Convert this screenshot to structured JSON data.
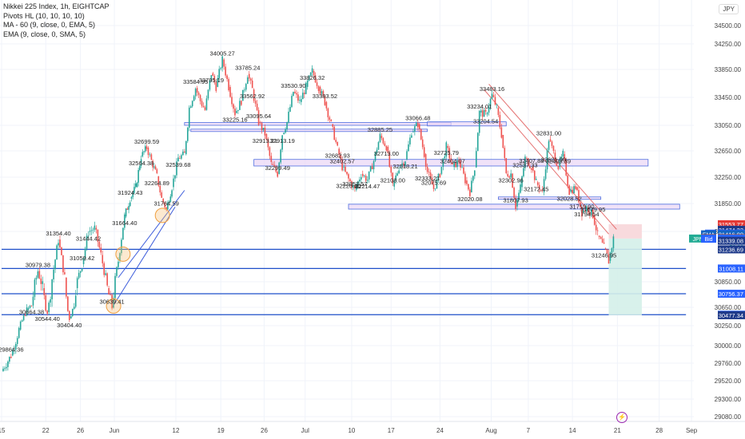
{
  "legend": {
    "title": "Nikkei 225 Index, 1h, EIGHTCAP",
    "indicators": [
      "Pivots HL (10, 10, 10, 10)",
      "MA - 60 (9, close, 0, EMA, 5)",
      "EMA (9, close, 0, SMA, 5)"
    ]
  },
  "currency": "JPY",
  "event_icon": "lightning-icon",
  "chart_data": {
    "type": "candlestick",
    "title": "Nikkei 225 Index, 1h, EIGHTCAP",
    "ylim": [
      28900,
      34700
    ],
    "y_ticks": [
      34500,
      34250,
      33850,
      33450,
      33050,
      32650,
      32250,
      31850,
      31450,
      30850,
      30650,
      30250,
      30000,
      29760,
      29520,
      29300,
      29080
    ],
    "y_tick_labels": [
      "34500.00",
      "34250.00",
      "33850.00",
      "33450.00",
      "33050.00",
      "32650.00",
      "32250.00",
      "31850.00",
      "31450.00",
      "30850.00",
      "30650.00",
      "30250.00",
      "30000.00",
      "29760.00",
      "29520.00",
      "29300.00",
      "29080.00"
    ],
    "x_ticks": [
      {
        "label": "15",
        "t": 0
      },
      {
        "label": "22",
        "t": 56
      },
      {
        "label": "26",
        "t": 100
      },
      {
        "label": "Jun",
        "t": 143
      },
      {
        "label": "12",
        "t": 221
      },
      {
        "label": "19",
        "t": 278
      },
      {
        "label": "26",
        "t": 333
      },
      {
        "label": "Jul",
        "t": 385
      },
      {
        "label": "10",
        "t": 444
      },
      {
        "label": "17",
        "t": 494
      },
      {
        "label": "24",
        "t": 556
      },
      {
        "label": "Aug",
        "t": 621
      },
      {
        "label": "7",
        "t": 668
      },
      {
        "label": "14",
        "t": 724
      },
      {
        "label": "21",
        "t": 781
      },
      {
        "label": "28",
        "t": 834
      },
      {
        "label": "Sep",
        "t": 875
      }
    ],
    "price_path": [
      [
        0,
        29650
      ],
      [
        12,
        29864.36
      ],
      [
        22,
        30200
      ],
      [
        32,
        30600
      ],
      [
        38,
        30664.38
      ],
      [
        46,
        30979.38
      ],
      [
        52,
        30800
      ],
      [
        58,
        30544.4
      ],
      [
        66,
        31000
      ],
      [
        72,
        31354.4
      ],
      [
        80,
        30900
      ],
      [
        86,
        30404.4
      ],
      [
        94,
        30800
      ],
      [
        102,
        31059.42
      ],
      [
        110,
        31444.42
      ],
      [
        118,
        31500
      ],
      [
        126,
        31169
      ],
      [
        134,
        30800
      ],
      [
        140,
        30639.41
      ],
      [
        148,
        31100
      ],
      [
        156,
        31664.4
      ],
      [
        163,
        31924.43
      ],
      [
        170,
        32100
      ],
      [
        177,
        32564.38
      ],
      [
        184,
        32699.59
      ],
      [
        190,
        32500
      ],
      [
        197,
        32264.89
      ],
      [
        203,
        31924
      ],
      [
        209,
        31764.59
      ],
      [
        216,
        32100
      ],
      [
        224,
        32539.68
      ],
      [
        232,
        32600
      ],
      [
        238,
        33300
      ],
      [
        246,
        33584.95
      ],
      [
        252,
        33400
      ],
      [
        258,
        33270
      ],
      [
        266,
        33795.19
      ],
      [
        272,
        33600
      ],
      [
        280,
        34005.27
      ],
      [
        288,
        33600
      ],
      [
        296,
        33225.16
      ],
      [
        304,
        33400
      ],
      [
        312,
        33785.24
      ],
      [
        318,
        33562.92
      ],
      [
        326,
        33095.64
      ],
      [
        334,
        32913.21
      ],
      [
        342,
        32450
      ],
      [
        350,
        32299.49
      ],
      [
        356,
        32913.19
      ],
      [
        362,
        33095.64
      ],
      [
        370,
        33530.9
      ],
      [
        378,
        33383.52
      ],
      [
        386,
        33600
      ],
      [
        394,
        33826.32
      ],
      [
        402,
        33600
      ],
      [
        410,
        33383.52
      ],
      [
        418,
        33066
      ],
      [
        426,
        32682.93
      ],
      [
        432,
        32402.57
      ],
      [
        440,
        32220.4
      ],
      [
        448,
        32057.57
      ],
      [
        456,
        32300
      ],
      [
        464,
        32214.47
      ],
      [
        472,
        32500
      ],
      [
        480,
        32885.25
      ],
      [
        488,
        32713
      ],
      [
        496,
        32108
      ],
      [
        504,
        32400
      ],
      [
        512,
        32518.21
      ],
      [
        520,
        32950
      ],
      [
        528,
        33066.48
      ],
      [
        536,
        32600
      ],
      [
        540,
        32333.21
      ],
      [
        548,
        32075.69
      ],
      [
        556,
        32300
      ],
      [
        564,
        32725.79
      ],
      [
        572,
        32404.07
      ],
      [
        580,
        32500
      ],
      [
        588,
        32200
      ],
      [
        594,
        32020.08
      ],
      [
        600,
        32400
      ],
      [
        606,
        33234.01
      ],
      [
        614,
        33204.54
      ],
      [
        622,
        33483.16
      ],
      [
        628,
        33300
      ],
      [
        634,
        32900
      ],
      [
        640,
        32300
      ],
      [
        646,
        32302.96
      ],
      [
        652,
        31807.93
      ],
      [
        658,
        32100
      ],
      [
        664,
        32537.33
      ],
      [
        672,
        32407.88
      ],
      [
        678,
        32172.45
      ],
      [
        686,
        32022.1
      ],
      [
        694,
        32831
      ],
      [
        700,
        32621
      ],
      [
        706,
        32403.39
      ],
      [
        712,
        32600
      ],
      [
        720,
        32028.52
      ],
      [
        728,
        32100
      ],
      [
        736,
        31719.9
      ],
      [
        742,
        31794.54
      ],
      [
        750,
        31679.95
      ],
      [
        756,
        31400
      ],
      [
        764,
        31246.95
      ],
      [
        770,
        31100
      ],
      [
        776,
        31365.8
      ]
    ],
    "pivot_labels": [
      {
        "t": 12,
        "v": 29864.36,
        "label": "29864.36"
      },
      {
        "t": 38,
        "v": 30664.38,
        "label": "30664.38"
      },
      {
        "t": 46,
        "v": 30979.38,
        "label": "30979.38"
      },
      {
        "t": 58,
        "v": 30544.4,
        "label": "30544.40"
      },
      {
        "t": 72,
        "v": 31354.4,
        "label": "31354.40"
      },
      {
        "t": 86,
        "v": 30404.4,
        "label": "30404.40"
      },
      {
        "t": 102,
        "v": 31059.42,
        "label": "31059.42"
      },
      {
        "t": 110,
        "v": 31444.42,
        "label": "31444.42"
      },
      {
        "t": 140,
        "v": 30639.41,
        "label": "30639.41"
      },
      {
        "t": 156,
        "v": 31664.4,
        "label": "31664.40"
      },
      {
        "t": 163,
        "v": 31924.43,
        "label": "31924.43"
      },
      {
        "t": 177,
        "v": 32564.38,
        "label": "32564.38"
      },
      {
        "t": 184,
        "v": 32699.59,
        "label": "32699.59"
      },
      {
        "t": 197,
        "v": 32264.89,
        "label": "32264.89"
      },
      {
        "t": 209,
        "v": 31764.59,
        "label": "31764.59"
      },
      {
        "t": 224,
        "v": 32539.68,
        "label": "32539.68"
      },
      {
        "t": 246,
        "v": 33584.95,
        "label": "33584.95"
      },
      {
        "t": 266,
        "v": 33795.19,
        "label": "33795.19"
      },
      {
        "t": 280,
        "v": 34005.27,
        "label": "34005.27"
      },
      {
        "t": 296,
        "v": 33225.16,
        "label": "33225.16"
      },
      {
        "t": 312,
        "v": 33785.24,
        "label": "33785.24"
      },
      {
        "t": 318,
        "v": 33562.92,
        "label": "33562.92"
      },
      {
        "t": 326,
        "v": 33095.64,
        "label": "33095.64"
      },
      {
        "t": 334,
        "v": 32913.21,
        "label": "32913.21"
      },
      {
        "t": 350,
        "v": 32299.49,
        "label": "32299.49"
      },
      {
        "t": 356,
        "v": 32913.19,
        "label": "32913.19"
      },
      {
        "t": 370,
        "v": 33530.9,
        "label": "33530.90"
      },
      {
        "t": 394,
        "v": 33826.32,
        "label": "33826.32"
      },
      {
        "t": 410,
        "v": 33383.52,
        "label": "33383.52"
      },
      {
        "t": 426,
        "v": 32682.93,
        "label": "32682.93"
      },
      {
        "t": 432,
        "v": 32402.57,
        "label": "32402.57"
      },
      {
        "t": 440,
        "v": 32220.4,
        "label": "32220.40"
      },
      {
        "t": 448,
        "v": 32057.57,
        "label": "32057.57"
      },
      {
        "t": 464,
        "v": 32214.47,
        "label": "32214.47"
      },
      {
        "t": 480,
        "v": 32885.25,
        "label": "32885.25"
      },
      {
        "t": 488,
        "v": 32713.0,
        "label": "32713.00"
      },
      {
        "t": 496,
        "v": 32108.0,
        "label": "32108.00"
      },
      {
        "t": 512,
        "v": 32518.21,
        "label": "32518.21"
      },
      {
        "t": 528,
        "v": 33066.48,
        "label": "33066.48"
      },
      {
        "t": 540,
        "v": 32333.21,
        "label": "32333.21"
      },
      {
        "t": 548,
        "v": 32075.69,
        "label": "32075.69"
      },
      {
        "t": 564,
        "v": 32725.79,
        "label": "32725.79"
      },
      {
        "t": 572,
        "v": 32404.07,
        "label": "32404.07"
      },
      {
        "t": 594,
        "v": 32020.08,
        "label": "32020.08"
      },
      {
        "t": 606,
        "v": 33234.01,
        "label": "33234.01"
      },
      {
        "t": 614,
        "v": 33204.54,
        "label": "33204.54"
      },
      {
        "t": 622,
        "v": 33483.16,
        "label": "33483.16"
      },
      {
        "t": 646,
        "v": 32302.96,
        "label": "32302.96"
      },
      {
        "t": 652,
        "v": 31807.93,
        "label": "31807.93"
      },
      {
        "t": 664,
        "v": 32537.33,
        "label": "32537.33"
      },
      {
        "t": 672,
        "v": 32407.88,
        "label": "32407.88"
      },
      {
        "t": 678,
        "v": 32172.45,
        "label": "32172.45"
      },
      {
        "t": 694,
        "v": 32831.0,
        "label": "32831.00"
      },
      {
        "t": 700,
        "v": 32621.0,
        "label": "32621.00"
      },
      {
        "t": 706,
        "v": 32403.39,
        "label": "32403.39"
      },
      {
        "t": 720,
        "v": 32028.52,
        "label": "32028.52"
      },
      {
        "t": 736,
        "v": 31719.9,
        "label": "31719.90"
      },
      {
        "t": 742,
        "v": 31794.54,
        "label": "31794.54"
      },
      {
        "t": 750,
        "v": 31679.95,
        "label": "31679.95"
      },
      {
        "t": 764,
        "v": 31246.95,
        "label": "31246.95"
      }
    ],
    "zones": [
      {
        "t1": 232,
        "t2": 570,
        "v1": 33050,
        "v2": 33090
      },
      {
        "t1": 240,
        "t2": 540,
        "v1": 32960,
        "v2": 32990
      },
      {
        "t1": 540,
        "t2": 640,
        "v1": 33040,
        "v2": 33100
      },
      {
        "t1": 320,
        "t2": 820,
        "v1": 32420,
        "v2": 32520
      },
      {
        "t1": 440,
        "t2": 860,
        "v1": 31770,
        "v2": 31840
      },
      {
        "t1": 630,
        "t2": 760,
        "v1": 31920,
        "v2": 31950
      }
    ],
    "support_lines": [
      {
        "v": 31008.11,
        "t1": 0,
        "t2": 868
      },
      {
        "v": 30756.37,
        "t1": 0,
        "t2": 868
      },
      {
        "v": 30489.16,
        "t1": 0,
        "t2": 868
      },
      {
        "v": 31236.69,
        "t1": 0,
        "t2": 868
      }
    ],
    "trend_lines": [
      {
        "t1": 140,
        "v1": 30640,
        "t2": 220,
        "v2": 31800
      },
      {
        "t1": 148,
        "v1": 30900,
        "t2": 232,
        "v2": 32050
      },
      {
        "t1": 612,
        "v1": 33560,
        "t2": 770,
        "v2": 31420
      },
      {
        "t1": 618,
        "v1": 33640,
        "t2": 780,
        "v2": 31480
      }
    ],
    "circles": [
      {
        "t": 154,
        "v": 31180
      },
      {
        "t": 142,
        "v": 30660
      },
      {
        "t": 204,
        "v": 31680
      }
    ],
    "position_box": {
      "t1": 770,
      "t2": 812,
      "entry": 31365.8,
      "target": 30477.34,
      "stop": 31553.77
    },
    "price_tags": [
      {
        "v": 31553.77,
        "label": "31553.77",
        "color": "#e53935"
      },
      {
        "v": 31474.33,
        "label": "31474.33",
        "color": "#1e3a8a"
      },
      {
        "v": 31424.01,
        "label": "31424.01",
        "color": "#2962ff",
        "badge": "MA"
      },
      {
        "v": 31416.0,
        "label": "31416.00",
        "color": "#1565c0",
        "badge": "EMA"
      },
      {
        "v": 31370.3,
        "label": "31370.30",
        "color": "#e53935",
        "badge": "Ask"
      },
      {
        "v": 31365.8,
        "label": "31365.80",
        "color": "#22ab94",
        "badge": "JPN225",
        "extra": "52:36"
      },
      {
        "v": 31363.3,
        "label": "31363.30",
        "color": "#2962ff",
        "badge": "Bid"
      },
      {
        "v": 31339.08,
        "label": "31339.08",
        "color": "#1e3a8a"
      },
      {
        "v": 31236.69,
        "label": "31236.69",
        "color": "#1e3a8a"
      },
      {
        "v": 31008.11,
        "label": "31008.11",
        "color": "#2962ff"
      },
      {
        "v": 30756.37,
        "label": "30756.37",
        "color": "#2962ff"
      },
      {
        "v": 30489.16,
        "label": "30489.16",
        "color": "#2962ff"
      },
      {
        "v": 30477.34,
        "label": "30477.34",
        "color": "#1e3a8a"
      }
    ],
    "grid": true
  }
}
